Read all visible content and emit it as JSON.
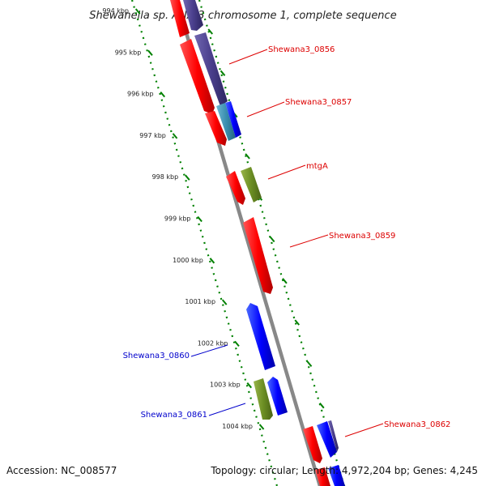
{
  "title": "Shewanella sp. ANA-3 chromosome 1, complete sequence",
  "footer": {
    "accession": "Accession: NC_008577",
    "summary": "Topology: circular; Length: 4,972,204 bp; Genes: 4,245"
  },
  "ticks": [
    "994 kbp",
    "995 kbp",
    "996 kbp",
    "997 kbp",
    "998 kbp",
    "999 kbp",
    "1000 kbp",
    "1001 kbp",
    "1002 kbp",
    "1003 kbp",
    "1004 kbp"
  ],
  "gene_labels": [
    {
      "name": "Shewana3_0856",
      "color": "#dd0000"
    },
    {
      "name": "Shewana3_0857",
      "color": "#dd0000"
    },
    {
      "name": "mtgA",
      "color": "#dd0000"
    },
    {
      "name": "Shewana3_0859",
      "color": "#dd0000"
    },
    {
      "name": "Shewana3_0860",
      "color": "#0000cc"
    },
    {
      "name": "Shewana3_0861",
      "color": "#0000cc"
    },
    {
      "name": "Shewana3_0862",
      "color": "#dd0000"
    }
  ],
  "colors": {
    "backbone": "#888888",
    "forward": "#ff0000",
    "reverse": "#0000ff",
    "cog_purple": "#4a3f8c",
    "cog_green": "#6b8e23",
    "cog_teal": "#3a8fb0",
    "tick_green": "#008000"
  }
}
